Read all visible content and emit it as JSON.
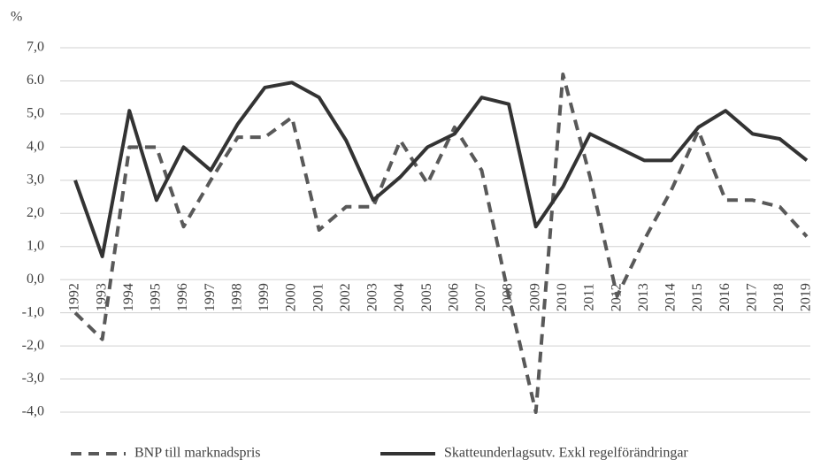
{
  "chart_data": {
    "type": "line",
    "y_unit_label": "%",
    "categories": [
      "1992",
      "1993",
      "1994",
      "1995",
      "1996",
      "1997",
      "1998",
      "1999",
      "2000",
      "2001",
      "2002",
      "2003",
      "2004",
      "2005",
      "2006",
      "2007",
      "2008",
      "2009",
      "2010",
      "2011",
      "2012",
      "2013",
      "2014",
      "2015",
      "2016",
      "2017",
      "2018",
      "2019"
    ],
    "series": [
      {
        "name": "BNP till marknadspris",
        "color": "#595959",
        "dash": true,
        "values": [
          -1.0,
          -1.8,
          4.0,
          4.0,
          1.6,
          3.0,
          4.3,
          4.3,
          4.9,
          1.5,
          2.2,
          2.2,
          4.2,
          2.9,
          4.6,
          3.3,
          -0.5,
          -4.0,
          6.2,
          3.1,
          -0.5,
          1.2,
          2.7,
          4.5,
          2.4,
          2.4,
          2.2,
          1.3
        ]
      },
      {
        "name": "Skatteunderlagsutv. Exkl regelförändringar",
        "color": "#333333",
        "dash": false,
        "values": [
          3.0,
          0.7,
          5.1,
          2.4,
          4.0,
          3.3,
          4.7,
          5.8,
          5.95,
          5.5,
          4.2,
          2.4,
          3.1,
          4.0,
          4.4,
          5.5,
          5.3,
          1.6,
          2.8,
          4.4,
          4.0,
          3.6,
          3.6,
          4.6,
          5.1,
          4.4,
          4.25,
          3.6
        ]
      }
    ],
    "ylim": [
      -4,
      7
    ],
    "yticks": [
      {
        "value": -4,
        "label": "-4,0"
      },
      {
        "value": -3,
        "label": "-3,0"
      },
      {
        "value": -2,
        "label": "-2,0"
      },
      {
        "value": -1,
        "label": "-1,0"
      },
      {
        "value": 0,
        "label": "0,0"
      },
      {
        "value": 1,
        "label": "1,0"
      },
      {
        "value": 2,
        "label": "2,0"
      },
      {
        "value": 3,
        "label": "3,0"
      },
      {
        "value": 4,
        "label": "4,0"
      },
      {
        "value": 5,
        "label": "5,0"
      },
      {
        "value": 6,
        "label": "6.0"
      },
      {
        "value": 7,
        "label": "7,0"
      }
    ],
    "grid": true,
    "legend": "bottom"
  }
}
